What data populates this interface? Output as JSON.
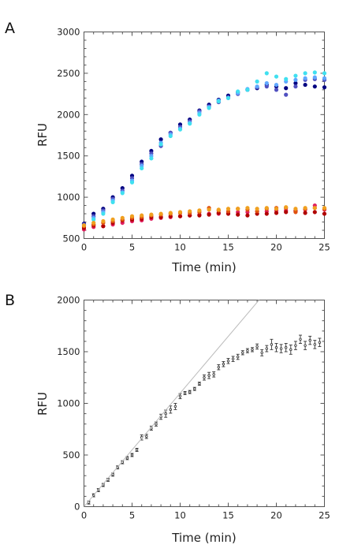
{
  "chart_data": [
    {
      "panel": "A",
      "type": "scatter",
      "xlabel": "Time (min)",
      "ylabel": "RFU",
      "xlim": [
        0,
        25
      ],
      "ylim": [
        500,
        3000
      ],
      "xticks": [
        0,
        5,
        10,
        15,
        20,
        25
      ],
      "yticks": [
        500,
        1000,
        1500,
        2000,
        2500,
        3000
      ],
      "series": [
        {
          "color": "#000080",
          "x": [
            0,
            1,
            2,
            3,
            4,
            5,
            6,
            7,
            8,
            9,
            10,
            11,
            12,
            13,
            14,
            15,
            16,
            17,
            18,
            19,
            20,
            21,
            22,
            23,
            24,
            25
          ],
          "y": [
            680,
            800,
            860,
            1000,
            1110,
            1260,
            1430,
            1560,
            1700,
            1780,
            1880,
            1940,
            2050,
            2120,
            2180,
            2230,
            2270,
            2300,
            2320,
            2360,
            2340,
            2320,
            2380,
            2360,
            2340,
            2330
          ]
        },
        {
          "color": "#5050c0",
          "x": [
            0,
            1,
            2,
            3,
            4,
            5,
            6,
            7,
            8,
            9,
            10,
            11,
            12,
            13,
            14,
            15,
            16,
            17,
            18,
            19,
            20,
            21,
            22,
            23,
            24,
            25
          ],
          "y": [
            670,
            770,
            840,
            980,
            1080,
            1230,
            1400,
            1530,
            1620,
            1780,
            1850,
            1920,
            2040,
            2100,
            2150,
            2210,
            2250,
            2300,
            2330,
            2340,
            2300,
            2240,
            2340,
            2420,
            2430,
            2420
          ]
        },
        {
          "color": "#60a8ff",
          "x": [
            0,
            1,
            2,
            3,
            4,
            5,
            6,
            7,
            8,
            9,
            10,
            11,
            12,
            13,
            14,
            15,
            16,
            17,
            18,
            19,
            20,
            21,
            22,
            23,
            24,
            25
          ],
          "y": [
            660,
            750,
            820,
            960,
            1060,
            1200,
            1380,
            1500,
            1660,
            1760,
            1830,
            1900,
            2020,
            2090,
            2170,
            2200,
            2260,
            2310,
            2340,
            2380,
            2360,
            2400,
            2420,
            2440,
            2450,
            2440
          ]
        },
        {
          "color": "#40e0f0",
          "x": [
            0,
            1,
            2,
            3,
            4,
            5,
            6,
            7,
            8,
            9,
            10,
            11,
            12,
            13,
            14,
            15,
            16,
            17,
            18,
            19,
            20,
            21,
            22,
            23,
            24,
            25
          ],
          "y": [
            650,
            730,
            800,
            940,
            1050,
            1180,
            1350,
            1470,
            1640,
            1740,
            1820,
            1890,
            2000,
            2080,
            2160,
            2200,
            2280,
            2300,
            2400,
            2500,
            2460,
            2430,
            2470,
            2500,
            2510,
            2500
          ]
        },
        {
          "color": "#e02060",
          "x": [
            0,
            1,
            2,
            3,
            4,
            5,
            6,
            7,
            8,
            9,
            10,
            11,
            12,
            13,
            14,
            15,
            16,
            17,
            18,
            19,
            20,
            21,
            22,
            23,
            24,
            25
          ],
          "y": [
            610,
            640,
            650,
            670,
            690,
            710,
            720,
            740,
            750,
            760,
            770,
            780,
            790,
            800,
            800,
            810,
            820,
            820,
            830,
            830,
            840,
            840,
            840,
            850,
            900,
            850
          ]
        },
        {
          "color": "#b00000",
          "x": [
            0,
            1,
            2,
            3,
            4,
            5,
            6,
            7,
            8,
            9,
            10,
            11,
            12,
            13,
            14,
            15,
            16,
            17,
            18,
            19,
            20,
            21,
            22,
            23,
            24,
            25
          ],
          "y": [
            630,
            660,
            650,
            690,
            720,
            730,
            740,
            760,
            760,
            770,
            770,
            780,
            780,
            790,
            810,
            800,
            790,
            780,
            800,
            800,
            810,
            820,
            830,
            810,
            820,
            800
          ]
        },
        {
          "color": "#e05010",
          "x": [
            0,
            1,
            2,
            3,
            4,
            5,
            6,
            7,
            8,
            9,
            10,
            11,
            12,
            13,
            14,
            15,
            16,
            17,
            18,
            19,
            20,
            21,
            22,
            23,
            24,
            25
          ],
          "y": [
            650,
            670,
            690,
            710,
            730,
            750,
            760,
            780,
            790,
            800,
            810,
            810,
            820,
            870,
            840,
            830,
            860,
            850,
            830,
            860,
            870,
            870,
            820,
            860,
            870,
            860
          ]
        },
        {
          "color": "#f0a020",
          "x": [
            0,
            1,
            2,
            3,
            4,
            5,
            6,
            7,
            8,
            9,
            10,
            11,
            12,
            13,
            14,
            15,
            16,
            17,
            18,
            19,
            20,
            21,
            22,
            23,
            24,
            25
          ],
          "y": [
            660,
            690,
            710,
            730,
            750,
            770,
            780,
            790,
            800,
            810,
            820,
            830,
            840,
            850,
            850,
            860,
            860,
            870,
            860,
            870,
            860,
            880,
            860,
            870,
            870,
            870
          ]
        }
      ]
    },
    {
      "panel": "B",
      "type": "scatter",
      "xlabel": "Time (min)",
      "ylabel": "RFU",
      "xlim": [
        0,
        25
      ],
      "ylim": [
        0,
        2000
      ],
      "xticks": [
        0,
        5,
        10,
        15,
        20,
        25
      ],
      "yticks": [
        0,
        500,
        1000,
        1500,
        2000
      ],
      "series": [
        {
          "color": "#333333",
          "x": [
            0.5,
            1,
            1.5,
            2,
            2.5,
            3,
            3.5,
            4,
            4.5,
            5,
            5.5,
            6,
            6.5,
            7,
            7.5,
            8,
            8.5,
            9,
            9.5,
            10,
            10.5,
            11,
            11.5,
            12,
            12.5,
            13,
            13.5,
            14,
            14.5,
            15,
            15.5,
            16,
            16.5,
            17,
            17.5,
            18,
            18.5,
            19,
            19.5,
            20,
            20.5,
            21,
            21.5,
            22,
            22.5,
            23,
            23.5,
            24,
            24.5
          ],
          "y": [
            40,
            110,
            160,
            210,
            260,
            310,
            380,
            430,
            470,
            500,
            550,
            670,
            680,
            760,
            800,
            870,
            900,
            940,
            970,
            1070,
            1100,
            1110,
            1140,
            1190,
            1250,
            1270,
            1280,
            1350,
            1380,
            1410,
            1430,
            1450,
            1490,
            1510,
            1520,
            1550,
            1490,
            1530,
            1570,
            1540,
            1530,
            1540,
            1520,
            1560,
            1620,
            1560,
            1610,
            1570,
            1590
          ],
          "err": [
            15,
            15,
            15,
            15,
            15,
            15,
            15,
            15,
            15,
            15,
            15,
            25,
            20,
            20,
            20,
            25,
            35,
            35,
            30,
            25,
            15,
            15,
            15,
            15,
            25,
            30,
            25,
            25,
            25,
            25,
            25,
            25,
            20,
            20,
            20,
            25,
            30,
            30,
            50,
            40,
            40,
            40,
            45,
            40,
            40,
            40,
            40,
            40,
            40
          ]
        },
        {
          "type": "line",
          "color": "#bbbbbb",
          "x": [
            0,
            18.2
          ],
          "y": [
            0,
            2000
          ]
        }
      ]
    }
  ]
}
